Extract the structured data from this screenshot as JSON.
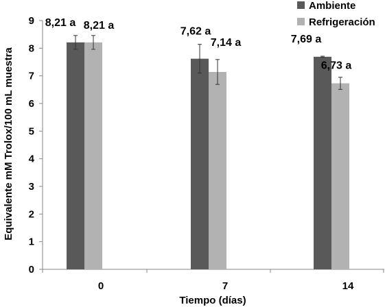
{
  "chart_data": {
    "type": "bar",
    "categories": [
      "0",
      "7",
      "14"
    ],
    "xlabel": "Tiempo (días)",
    "ylabel": "Equivalente mM Trolox/100 mL muestra",
    "ylim": [
      0,
      9
    ],
    "yticks": [
      "0",
      "1",
      "2",
      "3",
      "4",
      "5",
      "6",
      "7",
      "8",
      "9"
    ],
    "grid": false,
    "legend_position": "top-right",
    "series": [
      {
        "name": "Ambiente",
        "color": "#595959",
        "values": [
          8.21,
          7.62,
          7.69
        ],
        "errors": [
          0.25,
          0.52,
          0.02
        ],
        "labels": [
          "8,21 a",
          "7,62 a",
          "7,69 a"
        ]
      },
      {
        "name": "Refrigeración",
        "color": "#b2b2b2",
        "values": [
          8.21,
          7.14,
          6.73
        ],
        "errors": [
          0.25,
          0.45,
          0.22
        ],
        "labels": [
          "8,21 a",
          "7,14 a",
          "6,73 a"
        ]
      }
    ]
  }
}
